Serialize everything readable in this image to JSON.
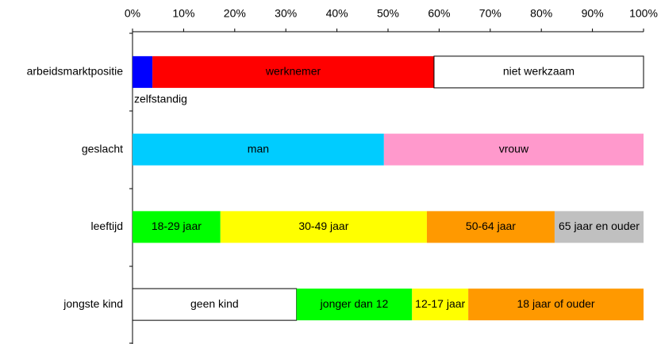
{
  "chart_data": {
    "type": "stacked_bar",
    "categories": [
      "arbeidsmarktpositie",
      "geslacht",
      "leeftijd",
      "jongste kind"
    ],
    "stacks": [
      [
        {
          "name": "zelfstandig",
          "color": "#0000ff",
          "value": 3.9
        },
        {
          "name": "werknemer",
          "color": "#ff0000",
          "value": 55.1
        },
        {
          "name": "niet werkzaam",
          "color": "#ffffff",
          "value": 41
        }
      ],
      [
        {
          "name": "man",
          "color": "#00ccff",
          "value": 49.2
        },
        {
          "name": "vrouw",
          "color": "#ff99cc",
          "value": 50.8
        }
      ],
      [
        {
          "name": "18-29 jaar",
          "color": "#00ff00",
          "value": 17.2
        },
        {
          "name": "30-49 jaar",
          "color": "#ffff00",
          "value": 40.4
        },
        {
          "name": "50-64 jaar",
          "color": "#ff9900",
          "value": 25
        },
        {
          "name": "65 jaar en ouder",
          "color": "#c0c0c0",
          "value": 17.4
        }
      ],
      [
        {
          "name": "geen kind",
          "color": "#ffffff",
          "value": 32.1
        },
        {
          "name": "jonger dan 12",
          "color": "#00ff00",
          "value": 22.6
        },
        {
          "name": "12-17 jaar",
          "color": "#ffff00",
          "value": 11
        },
        {
          "name": "18 jaar of ouder",
          "color": "#ff9900",
          "value": 34.3
        }
      ]
    ],
    "xlim": [
      0,
      100
    ],
    "xticks": [
      {
        "value": 0,
        "label": "0%"
      },
      {
        "value": 10,
        "label": "10%"
      },
      {
        "value": 20,
        "label": "20%"
      },
      {
        "value": 30,
        "label": "30%"
      },
      {
        "value": 40,
        "label": "40%"
      },
      {
        "value": 50,
        "label": "50%"
      },
      {
        "value": 60,
        "label": "60%"
      },
      {
        "value": 70,
        "label": "70%"
      },
      {
        "value": 80,
        "label": "80%"
      },
      {
        "value": 90,
        "label": "90%"
      },
      {
        "value": 100,
        "label": "100%"
      }
    ]
  }
}
